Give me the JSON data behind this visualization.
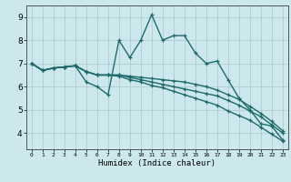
{
  "xlabel": "Humidex (Indice chaleur)",
  "background_color": "#cde8ec",
  "grid_color": "#aecdd1",
  "line_color": "#1e6b6b",
  "x_ticks": [
    0,
    1,
    2,
    3,
    4,
    5,
    6,
    7,
    8,
    9,
    10,
    11,
    12,
    13,
    14,
    15,
    16,
    17,
    18,
    19,
    20,
    21,
    22,
    23
  ],
  "y_ticks": [
    4,
    5,
    6,
    7,
    8,
    9
  ],
  "ylim": [
    3.3,
    9.5
  ],
  "xlim": [
    -0.5,
    23.5
  ],
  "series": [
    [
      7.0,
      6.7,
      6.8,
      6.85,
      6.9,
      6.2,
      6.0,
      5.65,
      8.0,
      7.25,
      8.0,
      9.1,
      8.0,
      8.2,
      8.2,
      7.45,
      7.0,
      7.1,
      6.3,
      5.5,
      5.0,
      4.4,
      4.3,
      3.7
    ],
    [
      7.0,
      6.7,
      6.8,
      6.85,
      6.9,
      6.65,
      6.5,
      6.5,
      6.5,
      6.45,
      6.4,
      6.35,
      6.3,
      6.25,
      6.2,
      6.1,
      6.0,
      5.85,
      5.65,
      5.45,
      5.15,
      4.85,
      4.5,
      4.1
    ],
    [
      7.0,
      6.7,
      6.8,
      6.85,
      6.9,
      6.65,
      6.5,
      6.5,
      6.5,
      6.4,
      6.3,
      6.2,
      6.1,
      6.0,
      5.9,
      5.8,
      5.7,
      5.6,
      5.4,
      5.2,
      4.95,
      4.7,
      4.35,
      4.0
    ],
    [
      7.0,
      6.7,
      6.8,
      6.85,
      6.9,
      6.65,
      6.5,
      6.5,
      6.45,
      6.3,
      6.2,
      6.05,
      5.95,
      5.8,
      5.65,
      5.5,
      5.35,
      5.2,
      4.95,
      4.75,
      4.55,
      4.25,
      3.95,
      3.65
    ]
  ]
}
